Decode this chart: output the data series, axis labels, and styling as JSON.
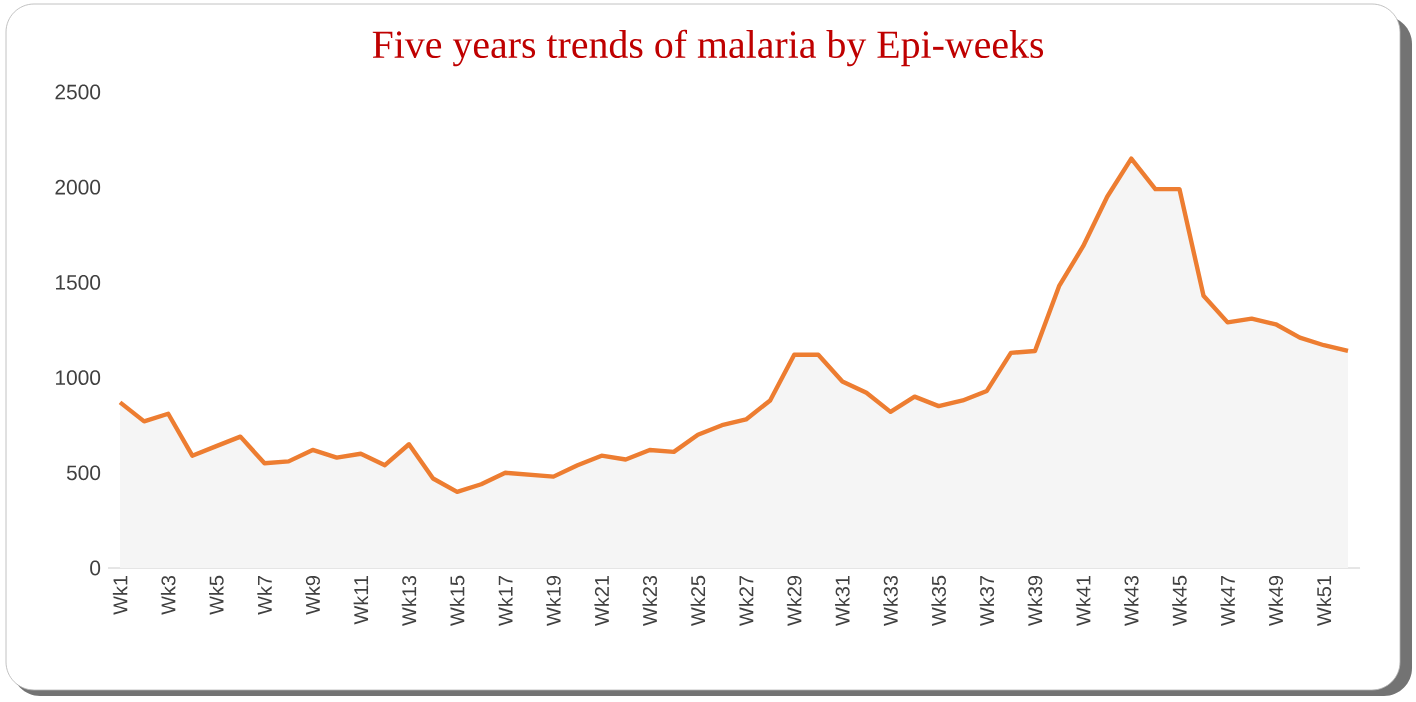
{
  "chart_data": {
    "type": "area",
    "title": "Five years trends of malaria by Epi-weeks",
    "categories": [
      "Wk1",
      null,
      "Wk3",
      null,
      "Wk5",
      null,
      "Wk7",
      null,
      "Wk9",
      null,
      "Wk11",
      null,
      "Wk13",
      null,
      "Wk15",
      null,
      "Wk17",
      null,
      "Wk19",
      null,
      "Wk21",
      null,
      "Wk23",
      null,
      "Wk25",
      null,
      "Wk27",
      null,
      "Wk29",
      null,
      "Wk31",
      null,
      "Wk33",
      null,
      "Wk35",
      null,
      "Wk37",
      null,
      "Wk39",
      null,
      "Wk41",
      null,
      "Wk43",
      null,
      "Wk45",
      null,
      "Wk47",
      null,
      "Wk49",
      null,
      "Wk51",
      null
    ],
    "values": [
      870,
      770,
      810,
      590,
      640,
      690,
      550,
      560,
      620,
      580,
      600,
      540,
      650,
      470,
      400,
      440,
      500,
      490,
      480,
      540,
      590,
      570,
      620,
      610,
      700,
      750,
      780,
      880,
      1120,
      1120,
      980,
      920,
      820,
      900,
      850,
      880,
      930,
      1130,
      1140,
      1480,
      1690,
      1950,
      2150,
      1990,
      1990,
      1430,
      1290,
      1310,
      1280,
      1210,
      1170,
      1140
    ],
    "color": "#ed7d31",
    "ylim": [
      0,
      2500
    ],
    "yticks": [
      0,
      500,
      1000,
      1500,
      2000,
      2500
    ],
    "grid": false
  }
}
